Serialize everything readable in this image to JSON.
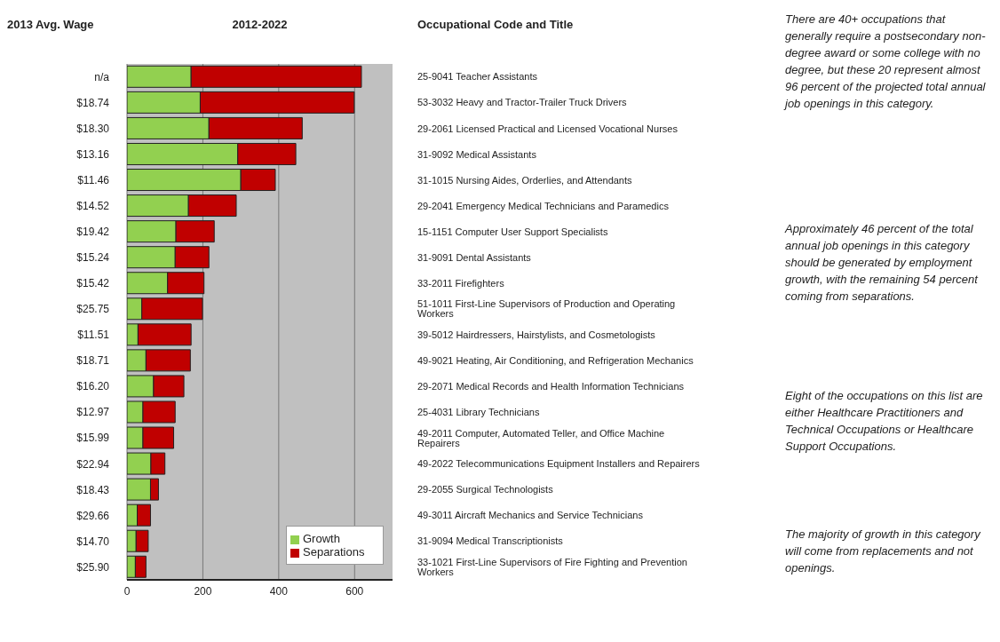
{
  "chart_data": {
    "type": "bar",
    "orientation": "horizontal",
    "stacked": true,
    "title": "2012-2022",
    "ylabel": "Occupational Code and Title",
    "categories": [
      "25-9041 Teacher Assistants",
      "53-3032 Heavy and Tractor-Trailer Truck Drivers",
      "29-2061 Licensed Practical and Licensed Vocational Nurses",
      "31-9092 Medical Assistants",
      "31-1015 Nursing Aides, Orderlies, and Attendants",
      "29-2041 Emergency Medical Technicians and Paramedics",
      "15-1151 Computer User Support Specialists",
      "31-9091 Dental Assistants",
      "33-2011 Firefighters",
      "51-1011 First-Line Supervisors of Production and Operating Workers",
      "39-5012 Hairdressers, Hairstylists, and Cosmetologists",
      "49-9021 Heating, Air Conditioning, and Refrigeration Mechanics",
      "29-2071 Medical Records and Health Information Technicians",
      "25-4031 Library Technicians",
      "49-2011 Computer, Automated Teller, and Office Machine Repairers",
      "49-2022 Telecommunications Equipment Installers and Repairers",
      "29-2055 Surgical Technologists",
      "49-3011 Aircraft Mechanics and Service Technicians",
      "31-9094 Medical Transcriptionists",
      "33-1021 First-Line Supervisors of Fire Fighting and Prevention Workers"
    ],
    "series": [
      {
        "name": "Growth",
        "color": "#92d050",
        "values": [
          169,
          193,
          216,
          292,
          300,
          162,
          129,
          127,
          107,
          39,
          29,
          50,
          70,
          42,
          42,
          63,
          62,
          27,
          24,
          22
        ]
      },
      {
        "name": "Separations",
        "color": "#c00000",
        "values": [
          449,
          406,
          246,
          153,
          91,
          126,
          101,
          89,
          96,
          160,
          140,
          117,
          80,
          85,
          81,
          37,
          21,
          35,
          32,
          28
        ]
      }
    ],
    "xlim": [
      0,
      700
    ],
    "xticks": [
      0,
      200,
      400,
      600
    ],
    "grid": "x",
    "legend": "bottom right",
    "annotations": [
      "2013 Avg. Wage",
      "n/a",
      "$18.74",
      "$18.30",
      "$13.16",
      "$11.46",
      "$14.52",
      "$19.42",
      "$15.24",
      "$15.42",
      "$25.75",
      "$11.51",
      "$18.71",
      "$16.20",
      "$12.97",
      "$15.99",
      "$22.94",
      "$18.43",
      "$29.66",
      "$14.70",
      "$25.90",
      "There are 40+ occupations that generally require a postsecondary non-degree award or some college with no degree, but these 20 represent almost 96 percent of the projected total annual job openings in this category.",
      "Approximately 46 percent of the total annual job openings in this category should be generated by employment growth, with the remaining 54 percent coming from separations.",
      "Eight of the occupations on this list are either Healthcare Practitioners and Technical Occupations or Healthcare Support Occupations.",
      "The majority of growth in this category will come from replacements and not openings."
    ]
  }
}
